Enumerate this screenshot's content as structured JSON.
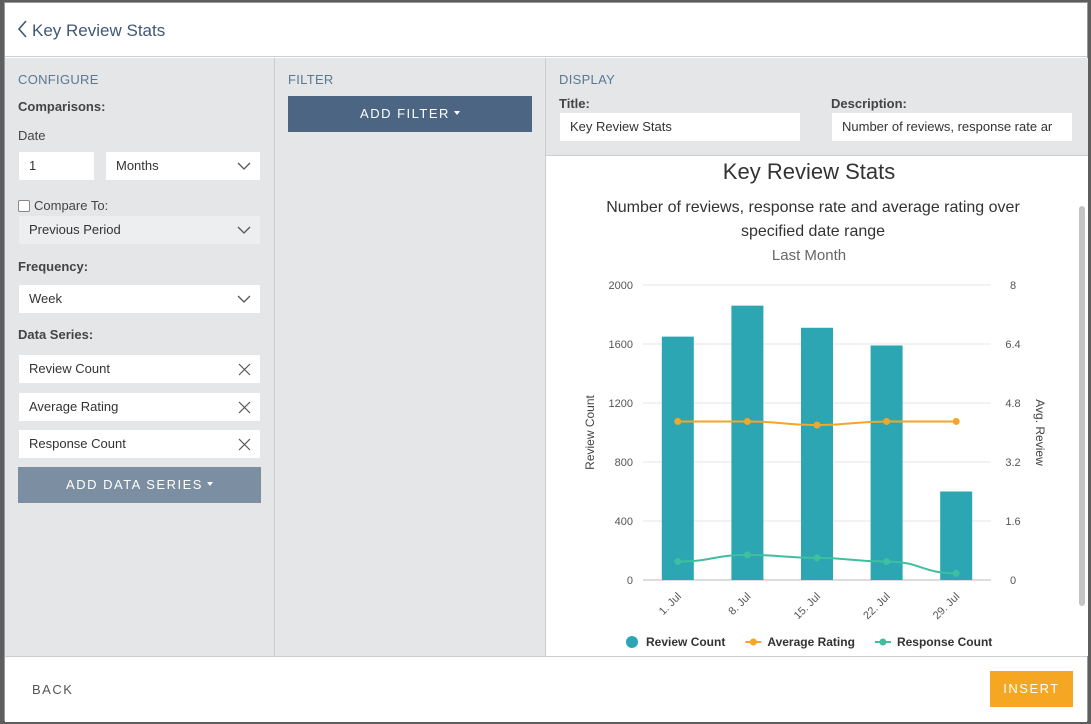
{
  "header": {
    "title": "Key Review Stats"
  },
  "configure": {
    "heading": "CONFIGURE",
    "comparisons_label": "Comparisons:",
    "date_label": "Date",
    "date_value": "1",
    "date_unit": "Months",
    "compare_to_label": "Compare To:",
    "compare_to_value": "Previous Period",
    "frequency_label": "Frequency:",
    "frequency_value": "Week",
    "data_series_label": "Data Series:",
    "series": [
      "Review Count",
      "Average Rating",
      "Response Count"
    ],
    "add_series_label": "ADD DATA SERIES"
  },
  "filter": {
    "heading": "FILTER",
    "add_filter_label": "ADD FILTER"
  },
  "display": {
    "heading": "DISPLAY",
    "title_label": "Title:",
    "title_value": "Key Review Stats",
    "description_label": "Description:",
    "description_value": "Number of reviews, response rate ar"
  },
  "chart_data": {
    "type": "bar",
    "title": "Key Review Stats",
    "subtitle_line1": "Number of reviews, response rate and average rating over",
    "subtitle_line2": "specified date range",
    "period": "Last Month",
    "categories": [
      "1. Jul",
      "8. Jul",
      "15. Jul",
      "22. Jul",
      "29. Jul"
    ],
    "ylabel": "Review Count",
    "y2label": "Avg. Review",
    "ylim": [
      0,
      2000
    ],
    "y2lim": [
      0,
      8
    ],
    "yticks": [
      "0",
      "400",
      "800",
      "1200",
      "1600",
      "2000"
    ],
    "y2ticks": [
      "0",
      "1.6",
      "3.2",
      "4.8",
      "6.4",
      "8"
    ],
    "series": [
      {
        "name": "Review Count",
        "kind": "bar",
        "axis": "left",
        "color": "#2ba6b2",
        "values": [
          1650,
          1860,
          1710,
          1590,
          600
        ]
      },
      {
        "name": "Average Rating",
        "kind": "line",
        "axis": "right",
        "color": "#f5a623",
        "values": [
          4.3,
          4.3,
          4.2,
          4.3,
          4.3
        ]
      },
      {
        "name": "Response Count",
        "kind": "line",
        "axis": "left",
        "color": "#3fbf9f",
        "values": [
          125,
          170,
          150,
          125,
          45
        ]
      }
    ],
    "legend_position": "bottom"
  },
  "footer": {
    "back_label": "BACK",
    "insert_label": "INSERT"
  },
  "colors": {
    "accent": "#f5a623",
    "primary": "#4b6582",
    "bar": "#2ba6b2"
  }
}
